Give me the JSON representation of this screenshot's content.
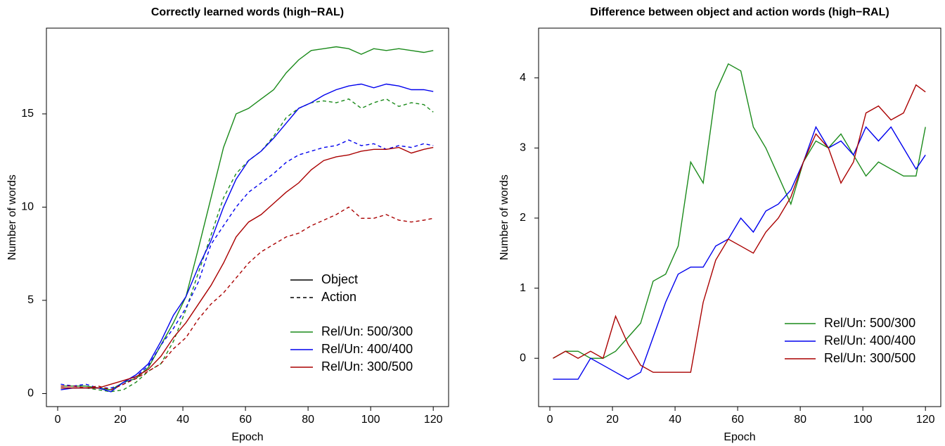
{
  "chart_data": [
    {
      "type": "line",
      "title": "Correctly learned words (high−RAL)",
      "x_label": "Epoch",
      "y_label": "Number of words",
      "x": [
        1,
        5,
        9,
        13,
        17,
        21,
        25,
        29,
        33,
        37,
        41,
        45,
        49,
        53,
        57,
        61,
        65,
        69,
        73,
        77,
        81,
        85,
        89,
        93,
        97,
        101,
        105,
        109,
        113,
        117,
        120
      ],
      "xlim": [
        -3.6,
        124.9
      ],
      "xticks": [
        0,
        20,
        40,
        60,
        80,
        100,
        120
      ],
      "ylim": [
        -0.7,
        19.6
      ],
      "yticks": [
        0,
        5,
        10,
        15
      ],
      "line_styles": [
        {
          "name": "Object",
          "dash": "solid"
        },
        {
          "name": "Action",
          "dash": "dashed"
        }
      ],
      "legend": "lower right",
      "series": [
        {
          "name": "Rel/Un: 500/300",
          "color": "#1a8a1a",
          "values": [
            [
              0.4,
              0.4,
              0.4,
              0.3,
              0.2,
              0.6,
              0.8,
              1.4,
              2.6,
              3.8,
              5.2,
              7.8,
              10.5,
              13.2,
              15.0,
              15.3,
              15.8,
              16.3,
              17.2,
              17.9,
              18.4,
              18.5,
              18.6,
              18.5,
              18.2,
              18.5,
              18.4,
              18.5,
              18.4,
              18.3,
              18.4
            ],
            [
              0.3,
              0.3,
              0.3,
              0.2,
              0.1,
              0.2,
              0.6,
              1.2,
              1.6,
              2.8,
              4.5,
              6.5,
              8.5,
              10.5,
              11.8,
              12.5,
              13.0,
              13.8,
              14.8,
              15.3,
              15.6,
              15.7,
              15.6,
              15.8,
              15.3,
              15.6,
              15.8,
              15.4,
              15.6,
              15.5,
              15.1
            ]
          ]
        },
        {
          "name": "Rel/Un: 400/400",
          "color": "#0000ee",
          "values": [
            [
              0.2,
              0.3,
              0.3,
              0.3,
              0.1,
              0.6,
              1.0,
              1.6,
              2.8,
              4.2,
              5.2,
              6.8,
              8.2,
              10.0,
              11.5,
              12.5,
              13.0,
              13.7,
              14.5,
              15.3,
              15.6,
              16.0,
              16.3,
              16.5,
              16.6,
              16.4,
              16.6,
              16.5,
              16.3,
              16.3,
              16.2
            ],
            [
              0.5,
              0.4,
              0.5,
              0.3,
              0.3,
              0.5,
              0.9,
              1.5,
              2.6,
              3.5,
              4.6,
              6.0,
              8.0,
              9.0,
              10.0,
              10.8,
              11.3,
              11.8,
              12.4,
              12.8,
              13.0,
              13.2,
              13.3,
              13.6,
              13.3,
              13.4,
              13.1,
              13.3,
              13.2,
              13.4,
              13.3
            ]
          ]
        },
        {
          "name": "Rel/Un: 300/500",
          "color": "#aa0000",
          "values": [
            [
              0.3,
              0.3,
              0.3,
              0.3,
              0.5,
              0.7,
              0.9,
              1.3,
              2.0,
              3.0,
              3.8,
              4.8,
              5.8,
              7.0,
              8.4,
              9.2,
              9.6,
              10.2,
              10.8,
              11.3,
              12.0,
              12.5,
              12.7,
              12.8,
              13.0,
              13.1,
              13.1,
              13.2,
              12.9,
              13.1,
              13.2
            ],
            [
              0.4,
              0.4,
              0.3,
              0.4,
              0.2,
              0.5,
              0.8,
              1.2,
              1.6,
              2.4,
              3.0,
              4.0,
              4.8,
              5.4,
              6.2,
              7.0,
              7.6,
              8.0,
              8.4,
              8.6,
              9.0,
              9.3,
              9.6,
              10.0,
              9.4,
              9.4,
              9.6,
              9.3,
              9.2,
              9.3,
              9.4
            ]
          ]
        }
      ]
    },
    {
      "type": "line",
      "title": "Difference between object and action words (high−RAL)",
      "x_label": "Epoch",
      "y_label": "Number of words",
      "x": [
        1,
        5,
        9,
        13,
        17,
        21,
        25,
        29,
        33,
        37,
        41,
        45,
        49,
        53,
        57,
        61,
        65,
        69,
        73,
        77,
        81,
        85,
        89,
        93,
        97,
        101,
        105,
        109,
        113,
        117,
        120
      ],
      "xlim": [
        -3.6,
        124.9
      ],
      "xticks": [
        0,
        20,
        40,
        60,
        80,
        100,
        120
      ],
      "ylim": [
        -0.69,
        4.71
      ],
      "yticks": [
        0,
        1,
        2,
        3,
        4
      ],
      "legend": "lower right",
      "series": [
        {
          "name": "Rel/Un: 500/300",
          "color": "#1a8a1a",
          "values": [
            0,
            0.1,
            0.1,
            0,
            0,
            0.1,
            0.3,
            0.5,
            1.1,
            1.2,
            1.6,
            2.8,
            2.5,
            3.8,
            4.2,
            4.1,
            3.3,
            3.0,
            2.6,
            2.2,
            2.8,
            3.1,
            3.0,
            3.2,
            2.9,
            2.6,
            2.8,
            2.7,
            2.6,
            2.6,
            3.3
          ]
        },
        {
          "name": "Rel/Un: 400/400",
          "color": "#0000ee",
          "values": [
            -0.3,
            -0.3,
            -0.3,
            0,
            -0.1,
            -0.2,
            -0.3,
            -0.2,
            0.3,
            0.8,
            1.2,
            1.3,
            1.3,
            1.6,
            1.7,
            2.0,
            1.8,
            2.1,
            2.2,
            2.4,
            2.8,
            3.3,
            3.0,
            3.1,
            2.9,
            3.3,
            3.1,
            3.3,
            3.0,
            2.7,
            2.9
          ]
        },
        {
          "name": "Rel/Un: 300/500",
          "color": "#aa0000",
          "values": [
            0,
            0.1,
            0,
            0.1,
            0,
            0.6,
            0.2,
            -0.1,
            -0.2,
            -0.2,
            -0.2,
            -0.2,
            0.8,
            1.4,
            1.7,
            1.6,
            1.5,
            1.8,
            2.0,
            2.3,
            2.8,
            3.2,
            3.0,
            2.5,
            2.8,
            3.5,
            3.6,
            3.4,
            3.5,
            3.9,
            3.8
          ]
        }
      ]
    }
  ]
}
